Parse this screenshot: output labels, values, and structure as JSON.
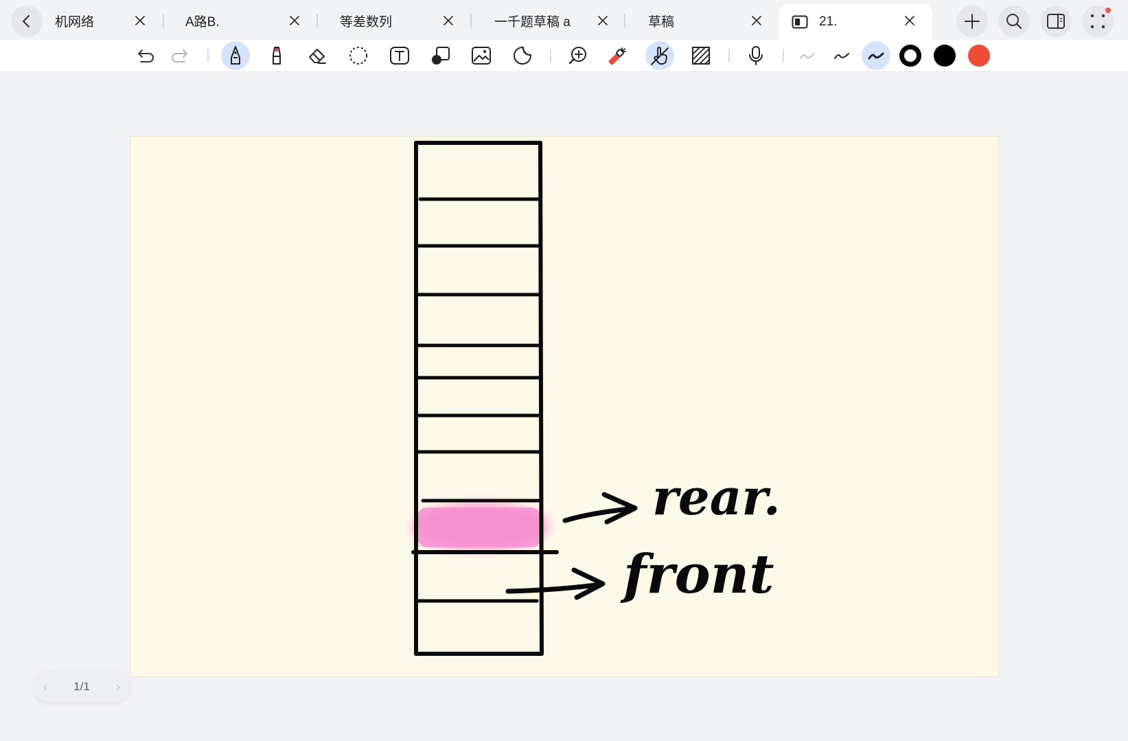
{
  "tabs": [
    {
      "label": "机网络",
      "active": false
    },
    {
      "label": "A路B.",
      "active": false
    },
    {
      "label": "等差数列",
      "active": false
    },
    {
      "label": "一千题草稿 a",
      "active": false
    },
    {
      "label": "草稿",
      "active": false
    },
    {
      "label": "21.",
      "active": true
    }
  ],
  "toolbar": {
    "tools": [
      "undo-icon",
      "redo-icon",
      "pen-icon",
      "highlighter-icon",
      "eraser-icon",
      "lasso-icon",
      "text-icon",
      "shapes-icon",
      "image-icon",
      "sticker-icon",
      "zoom-icon",
      "laser-pointer-icon",
      "touch-draw-icon",
      "ruler-pattern-icon",
      "microphone-icon"
    ],
    "selected_tools": [
      "pen-icon",
      "touch-draw-icon"
    ],
    "stroke_widths": [
      "thin",
      "medium",
      "thick"
    ],
    "selected_stroke": "thick",
    "colors": [
      "#000000",
      "#000000",
      "#ee4b35"
    ],
    "selected_color": "#000000"
  },
  "canvas": {
    "background": "#fdf9e9",
    "annotations": {
      "rear": "rear.",
      "front": "front"
    },
    "highlight_color": "#f78fd0"
  },
  "pager": {
    "current": "1/1"
  },
  "accent_color": "#d6e4fb",
  "notification_color": "#f25745"
}
